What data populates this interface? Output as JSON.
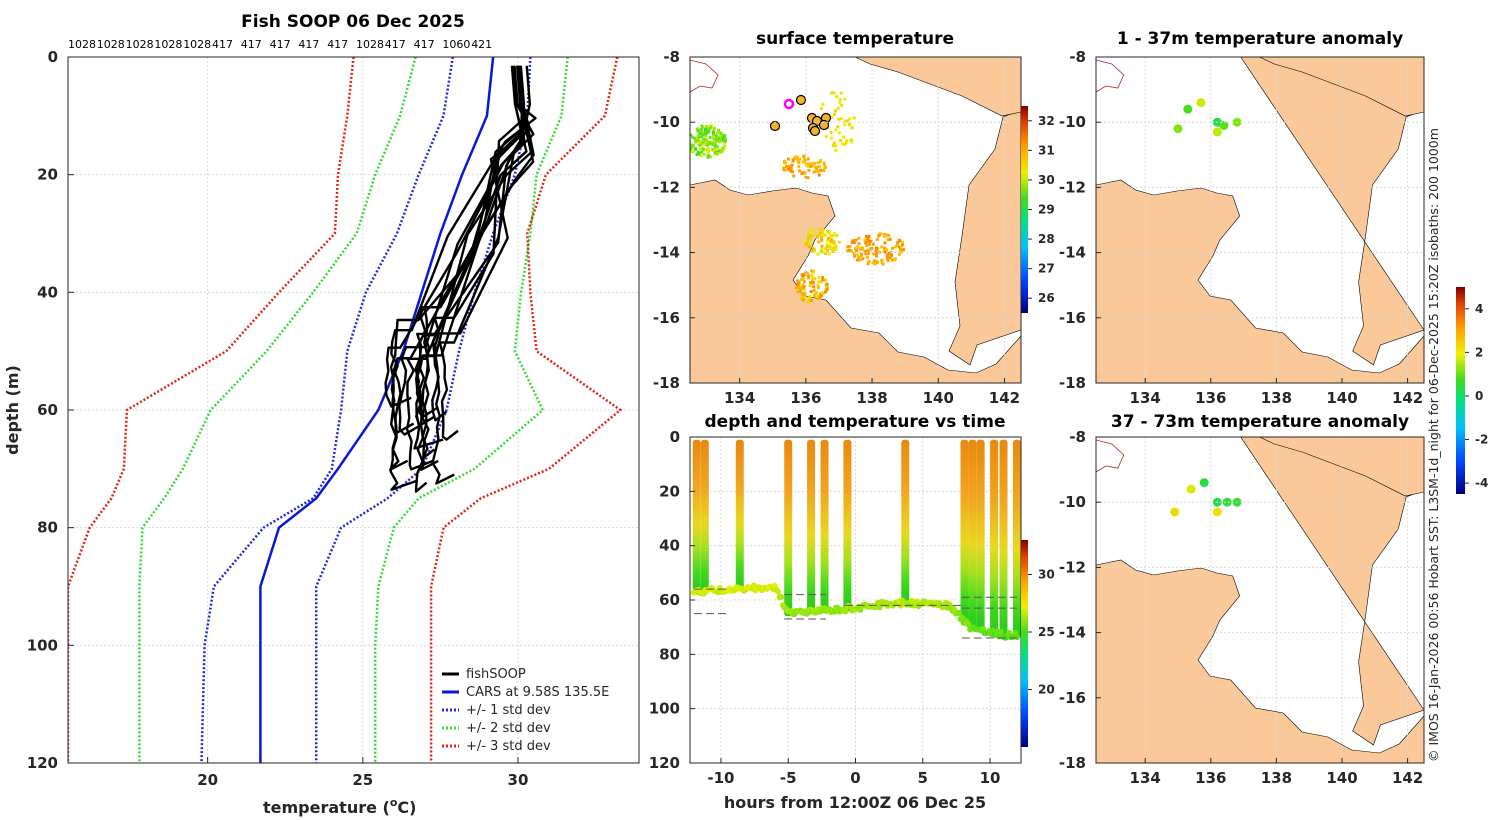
{
  "colors": {
    "land": "#fbc999",
    "black": "#000000",
    "cars": "#0a17d6",
    "std1": "#2229e0",
    "std2": "#33dd33",
    "std3": "#e5231b"
  },
  "profile_panel": {
    "title": "Fish SOOP 06 Dec 2025",
    "count_labels": [
      "1028",
      "1028",
      "1028",
      "1028",
      "1028",
      "417",
      "417",
      "417",
      "417",
      "417",
      "1028",
      "417",
      "417",
      "1060",
      "421"
    ],
    "xlabel": "temperature (",
    "xlabel_sup": "o",
    "xlabel_end": "C)",
    "ylabel": "depth (m)",
    "xticks": [
      "20",
      "25",
      "30"
    ],
    "yticks": [
      "0",
      "20",
      "40",
      "60",
      "80",
      "100",
      "120"
    ],
    "legend": [
      "fishSOOP",
      "CARS at 9.58S 135.5E",
      "+/- 1 std dev",
      "+/- 2 std dev",
      "+/- 3 std dev"
    ]
  },
  "map_sst": {
    "title": "surface temperature",
    "yticks": [
      "-8",
      "-10",
      "-12",
      "-14",
      "-16",
      "-18"
    ],
    "xticks": [
      "134",
      "136",
      "138",
      "140",
      "142"
    ],
    "cbar_ticks": [
      "32",
      "31",
      "30",
      "29",
      "28",
      "27",
      "26"
    ]
  },
  "map_anom1": {
    "title": "1 - 37m temperature anomaly",
    "yticks": [
      "-8",
      "-10",
      "-12",
      "-14",
      "-16",
      "-18"
    ],
    "xticks": [
      "134",
      "136",
      "138",
      "140",
      "142"
    ]
  },
  "map_anom2": {
    "title": "37 - 73m temperature anomaly",
    "yticks": [
      "-8",
      "-10",
      "-12",
      "-14",
      "-16",
      "-18"
    ],
    "xticks": [
      "134",
      "136",
      "138",
      "140",
      "142"
    ]
  },
  "anom_cbar_ticks": [
    "4",
    "2",
    "0",
    "-2",
    "-4"
  ],
  "time_panel": {
    "title": "depth and temperature vs time",
    "xlabel": "hours from 12:00Z 06 Dec 25",
    "xticks": [
      "-10",
      "-5",
      "0",
      "5",
      "10"
    ],
    "yticks": [
      "0",
      "20",
      "40",
      "60",
      "80",
      "100",
      "120"
    ],
    "cbar_ticks": [
      "30",
      "25",
      "20"
    ]
  },
  "side_note": "© IMOS 16-Jan-2026 00:56 Hobart SST: L3SM-1d_night for 06-Dec-2025 15:20Z isobaths: 200  1000m",
  "chart_data": [
    {
      "type": "line",
      "title": "Fish SOOP 06 Dec 2025",
      "xlabel": "temperature (oC)",
      "ylabel": "depth (m)",
      "xlim": [
        15.5,
        33.9
      ],
      "ylim": [
        0,
        120
      ],
      "depth": [
        0,
        10,
        20,
        30,
        40,
        50,
        60,
        70,
        75,
        80,
        90,
        100,
        120
      ],
      "series": [
        {
          "name": "CARS at 9.58S 135.5E",
          "values": [
            29.2,
            29.0,
            28.2,
            27.5,
            26.9,
            26.3,
            25.5,
            24.2,
            23.5,
            22.3,
            21.7,
            21.7,
            21.7
          ]
        },
        {
          "name": "+1 std dev",
          "values": [
            27.9,
            27.6,
            26.8,
            26.1,
            25.1,
            24.5,
            24.3,
            24.0,
            23.4,
            21.8,
            20.2,
            19.9,
            19.8
          ]
        },
        {
          "name": "-1 std dev",
          "values": [
            30.4,
            30.3,
            29.9,
            29.2,
            28.6,
            28.1,
            27.7,
            26.9,
            25.8,
            24.3,
            23.5,
            23.5,
            23.5
          ]
        },
        {
          "name": "+2 std dev",
          "values": [
            26.7,
            26.2,
            25.4,
            24.8,
            23.4,
            21.9,
            20.1,
            19.2,
            18.6,
            17.9,
            17.8,
            17.8,
            17.8
          ]
        },
        {
          "name": "-2 std dev",
          "values": [
            31.6,
            31.4,
            30.6,
            30.4,
            30.1,
            29.9,
            30.8,
            28.6,
            26.8,
            26.0,
            25.5,
            25.4,
            25.4
          ]
        },
        {
          "name": "+3 std dev",
          "values": [
            24.7,
            24.5,
            24.2,
            24.1,
            22.3,
            20.6,
            17.4,
            17.3,
            16.9,
            16.2,
            15.5,
            15.5,
            15.5
          ]
        },
        {
          "name": "-3 std dev",
          "values": [
            33.2,
            32.8,
            30.9,
            30.3,
            30.4,
            30.6,
            33.3,
            31.0,
            28.8,
            27.6,
            27.2,
            27.2,
            27.2
          ]
        }
      ],
      "fishSOOP": {
        "count": 15,
        "surface_temp_range": [
          29.7,
          30.3
        ],
        "bottom_depth_range": [
          59,
          74
        ],
        "bottom_temp_range": [
          25.6,
          28.3
        ]
      }
    },
    {
      "type": "heatmap",
      "title": "surface temperature",
      "lon_range": [
        132.5,
        142.5
      ],
      "lat_range": [
        -18,
        -8
      ],
      "colorbar_range": [
        25.5,
        32.5
      ],
      "colorbar_ticks": [
        26,
        27,
        28,
        29,
        30,
        31,
        32
      ]
    },
    {
      "type": "scatter",
      "title": "depth and temperature vs time",
      "xlabel": "hours from 12:00Z 06 Dec 25",
      "xlim": [
        -12.3,
        12.3
      ],
      "ylim": [
        0,
        120
      ],
      "colorbar_range": [
        15,
        33
      ],
      "colorbar_ticks": [
        20,
        25,
        30
      ],
      "trip_windows_hours": [
        [
          -12,
          -9.5
        ],
        [
          -8.7,
          -8.4
        ],
        [
          -5.3,
          -3.3
        ],
        [
          -3,
          -2.2
        ],
        [
          -0.8,
          -0.6
        ],
        [
          3.6,
          3.8
        ],
        [
          7.9,
          11.1
        ],
        [
          11.9,
          12.1
        ]
      ],
      "bottom_depth_m": [
        [
          -12,
          57
        ],
        [
          -9,
          56
        ],
        [
          -6,
          55
        ],
        [
          -5,
          65
        ],
        [
          -3,
          64
        ],
        [
          0,
          63
        ],
        [
          3,
          61
        ],
        [
          7,
          62
        ],
        [
          8.5,
          70
        ],
        [
          11,
          73
        ]
      ]
    },
    {
      "type": "scatter",
      "title": "1 - 37m temperature anomaly",
      "colorbar_range": [
        -4.5,
        5
      ],
      "points": [
        {
          "lon": 135.0,
          "lat": -10.2,
          "anom": 1.2
        },
        {
          "lon": 135.3,
          "lat": -9.6,
          "anom": 0.8
        },
        {
          "lon": 135.7,
          "lat": -9.4,
          "anom": 1.7
        },
        {
          "lon": 136.2,
          "lat": -10.0,
          "anom": 0.4
        },
        {
          "lon": 136.4,
          "lat": -10.1,
          "anom": 0.9
        },
        {
          "lon": 136.2,
          "lat": -10.3,
          "anom": 1.6
        },
        {
          "lon": 136.8,
          "lat": -10.0,
          "anom": 1.2
        }
      ]
    },
    {
      "type": "scatter",
      "title": "37 - 73m temperature anomaly",
      "colorbar_range": [
        -4.5,
        5
      ],
      "points": [
        {
          "lon": 134.9,
          "lat": -10.3,
          "anom": 2.3
        },
        {
          "lon": 135.4,
          "lat": -9.6,
          "anom": 1.8
        },
        {
          "lon": 135.8,
          "lat": -9.4,
          "anom": 0.4
        },
        {
          "lon": 136.2,
          "lat": -10.0,
          "anom": 0.3
        },
        {
          "lon": 136.5,
          "lat": -10.0,
          "anom": 0.5
        },
        {
          "lon": 136.2,
          "lat": -10.3,
          "anom": 2.2
        },
        {
          "lon": 136.8,
          "lat": -10.0,
          "anom": 0.6
        }
      ]
    }
  ]
}
